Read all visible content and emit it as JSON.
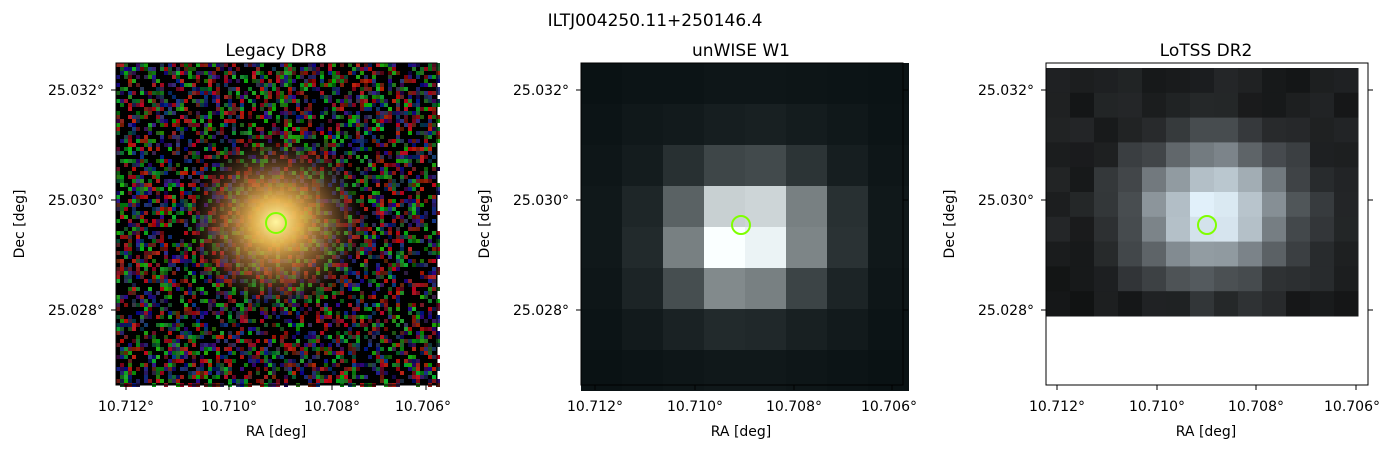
{
  "figure": {
    "suptitle": "ILTJ004250.11+250146.4",
    "panels": [
      {
        "title": "Legacy DR8",
        "xlabel": "RA [deg]",
        "ylabel": "Dec [deg]",
        "xticks": [
          "10.712°",
          "10.710°",
          "10.708°",
          "10.706°"
        ],
        "yticks": [
          "25.032°",
          "25.030°",
          "25.028°"
        ],
        "image": "color noise field with central orange-yellow galaxy"
      },
      {
        "title": "unWISE W1",
        "xlabel": "RA [deg]",
        "ylabel": "Dec [deg]",
        "xticks": [
          "10.712°",
          "10.710°",
          "10.708°",
          "10.706°"
        ],
        "yticks": [
          "25.032°",
          "25.030°",
          "25.028°"
        ],
        "image": "coarse grayscale pixels with bright central source"
      },
      {
        "title": "LoTSS DR2",
        "xlabel": "RA [deg]",
        "ylabel": "Dec [deg]",
        "xticks": [
          "10.712°",
          "10.710°",
          "10.708°",
          "10.706°"
        ],
        "yticks": [
          "25.032°",
          "25.030°",
          "25.028°"
        ],
        "image": "grayscale radio map with bright central source"
      }
    ],
    "marker": {
      "shape": "circle",
      "color": "#7fff00"
    }
  }
}
